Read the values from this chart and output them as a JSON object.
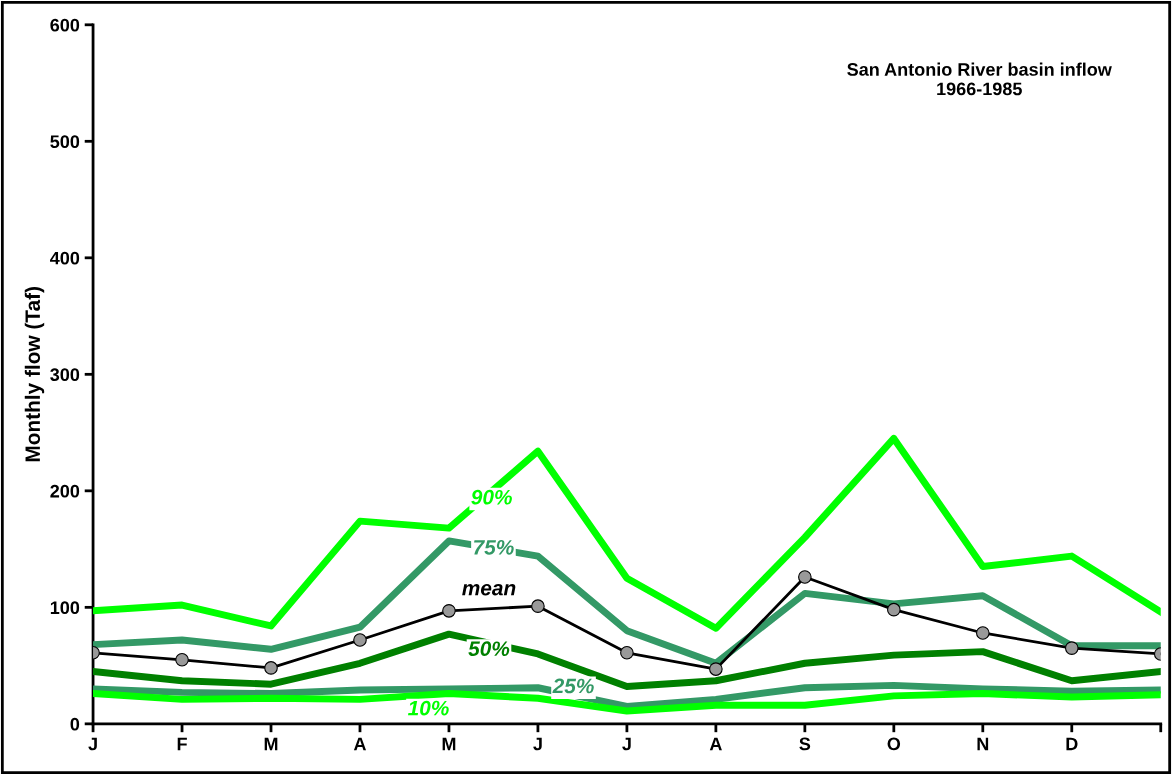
{
  "chart_data": {
    "type": "line",
    "title": "San Antonio River basin inflow\n1966-1985",
    "ylabel": "Monthly flow (Taf)",
    "categories": [
      "J",
      "F",
      "M",
      "A",
      "M",
      "J",
      "J",
      "A",
      "S",
      "O",
      "N",
      "D",
      null
    ],
    "ylim": [
      0,
      600
    ],
    "yticks": [
      0,
      100,
      200,
      300,
      400,
      500,
      600
    ],
    "grid": false,
    "legend": false,
    "series": [
      {
        "name": "90%",
        "color": "#00ff00",
        "values": [
          97,
          102,
          84,
          174,
          168,
          234,
          125,
          82,
          160,
          245,
          135,
          144,
          96
        ]
      },
      {
        "name": "75%",
        "color": "#339966",
        "values": [
          68,
          72,
          64,
          83,
          157,
          144,
          80,
          52,
          112,
          103,
          110,
          67,
          67
        ]
      },
      {
        "name": "mean",
        "color": "#000000",
        "marker": "circle",
        "values": [
          61,
          55,
          48,
          72,
          97,
          101,
          61,
          47,
          126,
          98,
          78,
          65,
          60
        ]
      },
      {
        "name": "50%",
        "color": "#008000",
        "values": [
          45,
          37,
          34,
          52,
          77,
          60,
          32,
          37,
          52,
          59,
          62,
          37,
          45
        ]
      },
      {
        "name": "25%",
        "color": "#339966",
        "values": [
          30,
          27,
          26,
          29,
          30,
          31,
          15,
          21,
          31,
          33,
          30,
          28,
          29
        ]
      },
      {
        "name": "10%",
        "color": "#00ff00",
        "values": [
          26,
          21,
          22,
          21,
          26,
          22,
          11,
          16,
          16,
          24,
          26,
          23,
          25
        ]
      }
    ]
  }
}
